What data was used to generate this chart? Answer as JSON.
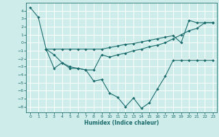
{
  "xlabel": "Humidex (Indice chaleur)",
  "bg_color": "#ceecea",
  "line_color": "#1a6b6b",
  "grid_color": "#ffffff",
  "ylim": [
    -8.7,
    5.0
  ],
  "xlim": [
    -0.5,
    23.5
  ],
  "yticks": [
    4,
    3,
    2,
    1,
    0,
    -1,
    -2,
    -3,
    -4,
    -5,
    -6,
    -7,
    -8
  ],
  "xticks": [
    0,
    1,
    2,
    3,
    4,
    5,
    6,
    7,
    8,
    9,
    10,
    11,
    12,
    13,
    14,
    15,
    16,
    17,
    18,
    19,
    20,
    21,
    22,
    23
  ],
  "line1": {
    "x": [
      0,
      1,
      2,
      3,
      4,
      5,
      6,
      7,
      8,
      9,
      10,
      11,
      12,
      13,
      14,
      15,
      16,
      17,
      18,
      19,
      20,
      21,
      22,
      23
    ],
    "y": [
      4.4,
      3.2,
      -0.8,
      -0.8,
      -0.8,
      -0.8,
      -0.8,
      -0.8,
      -0.8,
      -0.8,
      -0.6,
      -0.4,
      -0.2,
      -0.1,
      0.1,
      0.3,
      0.5,
      0.7,
      0.9,
      0.0,
      2.8,
      2.5,
      2.5,
      2.5
    ]
  },
  "line2": {
    "x": [
      2,
      3,
      4,
      5,
      6,
      7,
      8,
      9,
      10,
      11,
      12,
      13,
      14,
      15,
      16,
      17,
      18,
      19,
      20,
      21,
      22,
      23
    ],
    "y": [
      -0.8,
      -3.2,
      -2.5,
      -3.2,
      -3.2,
      -3.4,
      -4.8,
      -4.6,
      -6.3,
      -6.8,
      -8.0,
      -6.9,
      -8.2,
      -7.5,
      -5.8,
      -4.2,
      -2.2,
      -2.2,
      -2.2,
      -2.2,
      -2.2,
      -2.2
    ]
  },
  "line3": {
    "x": [
      2,
      3,
      4,
      5,
      6,
      7,
      8,
      9,
      10,
      11,
      12,
      13,
      14,
      15,
      16,
      17,
      18,
      19,
      20,
      21,
      22,
      23
    ],
    "y": [
      -0.8,
      -1.5,
      -2.5,
      -3.0,
      -3.2,
      -3.4,
      -3.4,
      -1.5,
      -1.8,
      -1.5,
      -1.3,
      -1.0,
      -0.8,
      -0.5,
      -0.3,
      0.0,
      0.5,
      1.0,
      1.5,
      1.8,
      2.5,
      2.5
    ]
  }
}
